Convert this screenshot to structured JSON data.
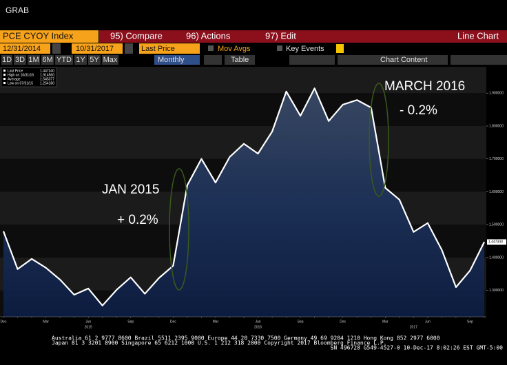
{
  "header": {
    "title": "GRAB"
  },
  "menu": {
    "ticker": "PCE CYOY Index",
    "compare": "95) Compare",
    "actions": "96) Actions",
    "edit": "97) Edit",
    "view": "Line Chart"
  },
  "controls": {
    "start_date": "12/31/2014",
    "end_date": "10/31/2017",
    "field": "Last Price",
    "mov_avgs": "Mov Avgs",
    "key_events": "Key Events",
    "ranges": [
      "1D",
      "3D",
      "1M",
      "6M",
      "YTD",
      "1Y",
      "5Y",
      "Max"
    ],
    "period": "Monthly",
    "table": "Table",
    "chart_content": "Chart Content"
  },
  "chart_data": {
    "type": "line",
    "categories": [
      "Dec",
      null,
      null,
      "Mar",
      null,
      null,
      "Jun",
      null,
      null,
      "Sep",
      null,
      null,
      "Dec",
      null,
      null,
      "Mar",
      null,
      null,
      "Jun",
      null,
      null,
      "Sep",
      null,
      null,
      "Dec",
      null,
      null,
      "Mar",
      null,
      null,
      "Jun",
      null,
      null,
      "Sep",
      null
    ],
    "year_labels": [
      null,
      null,
      null,
      null,
      null,
      null,
      "2015",
      null,
      null,
      null,
      null,
      null,
      null,
      null,
      null,
      null,
      null,
      null,
      "2016",
      null,
      null,
      null,
      null,
      null,
      null,
      null,
      null,
      null,
      null,
      "2017",
      null,
      null,
      null,
      null,
      null
    ],
    "series": [
      {
        "name": "Last Price",
        "color": "#ffffff",
        "values": [
          1.48,
          1.365,
          1.396,
          1.369,
          1.333,
          1.287,
          1.306,
          1.25418,
          1.302,
          1.34,
          1.29,
          1.338,
          1.375,
          1.62,
          1.7,
          1.628,
          1.706,
          1.746,
          1.716,
          1.783,
          1.905,
          1.831,
          1.91456,
          1.815,
          1.865,
          1.879,
          1.856,
          1.612,
          1.576,
          1.478,
          1.505,
          1.423,
          1.31,
          1.361,
          1.44734
        ],
        "value_labels": [
          null,
          null,
          null,
          null,
          null,
          null,
          null,
          null,
          null,
          null,
          null,
          null,
          null,
          null,
          null,
          null,
          null,
          null,
          null,
          null,
          null,
          null,
          null,
          null,
          null,
          null,
          null,
          null,
          null,
          null,
          null,
          null,
          null,
          null,
          "1.447340"
        ]
      }
    ],
    "legend": [
      {
        "label": "Last Price",
        "value": "1.447340"
      },
      {
        "label": "High on 10/31/16",
        "value": "1.914560"
      },
      {
        "label": "Average",
        "value": "1.545377"
      },
      {
        "label": "Low on 07/31/15",
        "value": "1.254180"
      }
    ],
    "ylim": [
      1.22,
      1.98
    ],
    "yticks": [
      {
        "value": 1.3,
        "label": "1.300000"
      },
      {
        "value": 1.4,
        "label": "1.400000"
      },
      {
        "value": 1.5,
        "label": "1.500000"
      },
      {
        "value": 1.6,
        "label": "1.600000"
      },
      {
        "value": 1.7,
        "label": "1.700000"
      },
      {
        "value": 1.8,
        "label": "1.800000"
      },
      {
        "value": 1.9,
        "label": "1.900000"
      }
    ],
    "annotations": [
      "JAN 2015",
      "+ 0.2%",
      "MARCH 2016",
      "- 0.2%"
    ]
  },
  "footer": {
    "line1": "Australia 61 2 9777 8600 Brazil 5511 2395 9000 Europe 44 20 7330 7500 Germany 49 69 9204 1210 Hong Kong 852 2977 6000",
    "line2": "Japan 81 3 3201 8900          Singapore 65 6212 1000       U.S. 1 212 318 2000            Copyright 2017 Bloomberg Finance L.P.",
    "line3": "SN 496728 G549-4527-0 10-Dec-17  8:02:26 EST  GMT-5:00"
  }
}
